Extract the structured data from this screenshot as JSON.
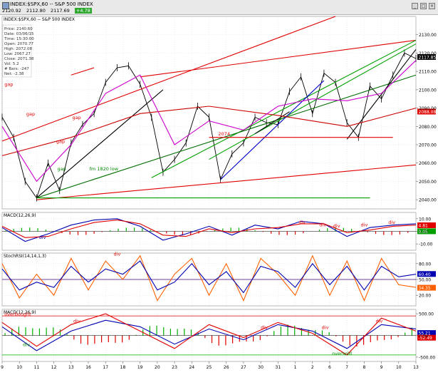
{
  "window": {
    "title": "INDEX:$SPX,60 -- S&P 500 INDEX",
    "quote": {
      "v1": "2120.92",
      "v2": "2112.80",
      "v3": "2117.69",
      "change": "+4.78"
    }
  },
  "info_box": [
    "Price: 2140.60",
    "Date: 03/06/15",
    "Time: 15:30:00",
    "Open: 2070.77",
    "High: 2072.08",
    "Low: 2067.27",
    "Close: 2071.38",
    "Vol: 5.2",
    "# Bars: -247",
    "Net: -2.38"
  ],
  "colors": {
    "price": "#000000",
    "trend_red": "#e00000",
    "trend_green": "#00a000",
    "trend_darkgreen": "#007000",
    "trend_blue": "#0000cc",
    "ma_red": "#cc0000",
    "ma_magenta": "#cc00cc",
    "macd_blue": "#0000b0",
    "macd_red": "#e00000",
    "stoch_orange": "#ff6000",
    "hist_green": "#00b000",
    "hist_red": "#e00000",
    "annotation_red": "#e00000",
    "annotation_green": "#008800"
  },
  "chart_data": [
    {
      "type": "line",
      "panel": "price",
      "title": "INDEX:$SPX,60 -- S&P 500 INDEX",
      "ylim": [
        2035,
        2140
      ],
      "yticks": [
        "2040.00",
        "2050.00",
        "2060.00",
        "2070.00",
        "2080.00",
        "2090.00",
        "2100.00",
        "2110.00",
        "2120.00",
        "2130.00"
      ],
      "xlim": [
        0,
        36
      ],
      "x_labels": [
        {
          "t": 0,
          "label": "9"
        },
        {
          "t": 1.5,
          "label": "10"
        },
        {
          "t": 3,
          "label": "11"
        },
        {
          "t": 4.5,
          "label": "12"
        },
        {
          "t": 6,
          "label": "13"
        },
        {
          "t": 7.5,
          "label": "16"
        },
        {
          "t": 9,
          "label": "17"
        },
        {
          "t": 10.5,
          "label": "18"
        },
        {
          "t": 12,
          "label": "19"
        },
        {
          "t": 13.5,
          "label": "20"
        },
        {
          "t": 15,
          "label": "23"
        },
        {
          "t": 16.5,
          "label": "24"
        },
        {
          "t": 18,
          "label": "25"
        },
        {
          "t": 19.5,
          "label": "26"
        },
        {
          "t": 21,
          "label": "27"
        },
        {
          "t": 22.5,
          "label": "30"
        },
        {
          "t": 24,
          "label": "31"
        },
        {
          "t": 25.5,
          "label": "1"
        },
        {
          "t": 27,
          "label": "2"
        },
        {
          "t": 28.5,
          "label": "6"
        },
        {
          "t": 30,
          "label": "7"
        },
        {
          "t": 31.5,
          "label": "8"
        },
        {
          "t": 33,
          "label": "9"
        },
        {
          "t": 34.5,
          "label": "10"
        },
        {
          "t": 36,
          "label": "13"
        }
      ],
      "price": {
        "name": "SPX 60-min",
        "x": [
          0,
          1,
          2,
          3,
          4,
          5,
          6,
          7,
          8,
          9,
          10,
          11,
          12,
          13,
          14,
          15,
          16,
          17,
          18,
          19,
          20,
          21,
          22,
          23,
          24,
          25,
          26,
          27,
          28,
          29,
          30,
          31,
          32,
          33,
          34,
          35,
          36
        ],
        "y": [
          2085,
          2074,
          2050,
          2041,
          2060,
          2045,
          2071,
          2081,
          2087,
          2104,
          2112,
          2113,
          2103,
          2085,
          2055,
          2062,
          2071,
          2091,
          2085,
          2051,
          2065,
          2071,
          2085,
          2082,
          2081,
          2099,
          2107,
          2087,
          2109,
          2104,
          2082,
          2074,
          2102,
          2095,
          2108,
          2120,
          2117
        ]
      },
      "series": [
        {
          "name": "",
          "color": "#cc0000",
          "x": [
            0,
            6,
            12,
            18,
            24,
            30,
            36
          ],
          "y": [
            2064,
            2074,
            2087,
            2091,
            2086,
            2080,
            2090
          ]
        },
        {
          "name": "",
          "color": "#cc00cc",
          "x": [
            0,
            3,
            6,
            9,
            12,
            15,
            18,
            21,
            24,
            27,
            30,
            33,
            36
          ],
          "y": [
            2080,
            2050,
            2070,
            2098,
            2108,
            2070,
            2083,
            2078,
            2091,
            2095,
            2094,
            2098,
            2116
          ]
        }
      ],
      "trendlines": [
        {
          "x": [
            0,
            29
          ],
          "y": [
            2072,
            2140
          ],
          "color": "#e00000"
        },
        {
          "x": [
            12,
            36
          ],
          "y": [
            2107,
            2127
          ],
          "color": "#e00000"
        },
        {
          "x": [
            3,
            36
          ],
          "y": [
            2040,
            2059
          ],
          "color": "#e00000"
        },
        {
          "x": [
            13,
            36
          ],
          "y": [
            2052,
            2127
          ],
          "color": "#00a000"
        },
        {
          "x": [
            18,
            36
          ],
          "y": [
            2062,
            2125
          ],
          "color": "#00a000"
        },
        {
          "x": [
            3,
            36
          ],
          "y": [
            2041,
            2108
          ],
          "color": "#007000"
        },
        {
          "x": [
            19,
            28
          ],
          "y": [
            2051,
            2105
          ],
          "color": "#0000cc"
        },
        {
          "x": [
            22,
            25
          ],
          "y": [
            2076,
            2088
          ],
          "color": "#000000"
        },
        {
          "x": [
            3,
            14
          ],
          "y": [
            2041,
            2100
          ],
          "color": "#000000"
        },
        {
          "x": [
            30,
            36
          ],
          "y": [
            2073,
            2122
          ],
          "color": "#000000"
        },
        {
          "x": [
            3,
            32
          ],
          "y": [
            2041,
            2041
          ],
          "color": "#00a000"
        },
        {
          "x": [
            18,
            34
          ],
          "y": [
            2074,
            2074
          ],
          "color": "#e00000"
        },
        {
          "x": [
            6,
            8
          ],
          "y": [
            2108,
            2112
          ],
          "color": "#e00000"
        }
      ],
      "annotations": [
        {
          "text": "gap",
          "x": 0.2,
          "y": 2102,
          "color": "#e00000"
        },
        {
          "text": "gap",
          "x": 2.1,
          "y": 2086,
          "color": "#e00000"
        },
        {
          "text": "gap",
          "x": 4.7,
          "y": 2071,
          "color": "#e00000"
        },
        {
          "text": "gap",
          "x": 6.1,
          "y": 2084,
          "color": "#e00000"
        },
        {
          "text": "gap",
          "x": 4.8,
          "y": 2056,
          "color": "#008800"
        },
        {
          "text": "2074",
          "x": 18.8,
          "y": 2075,
          "color": "#e00000"
        },
        {
          "text": "fm 1820 low",
          "x": 7.6,
          "y": 2056,
          "color": "#008800"
        }
      ],
      "price_labels": [
        {
          "text": "2117.85",
          "value": 2117.85,
          "bg": "#000000"
        },
        {
          "text": "2088.08",
          "value": 2088.08,
          "bg": "#e00000"
        }
      ]
    },
    {
      "type": "line",
      "panel": "macd",
      "title": "MACD(12,26,9)",
      "ylim": [
        -15,
        15
      ],
      "yticks": [
        "10.00",
        "0.00",
        "-10.00"
      ],
      "series": [
        {
          "name": "MACD",
          "color": "#0000b0",
          "x": [
            0,
            2,
            4,
            6,
            8,
            10,
            12,
            14,
            16,
            18,
            20,
            22,
            24,
            26,
            28,
            30,
            32,
            34,
            36
          ],
          "y": [
            3,
            -8,
            -2,
            5,
            9,
            10,
            4,
            -7,
            -2,
            4,
            -3,
            5,
            2,
            8,
            6,
            -4,
            3,
            5,
            6
          ]
        },
        {
          "name": "Signal",
          "color": "#e00000",
          "x": [
            0,
            2,
            4,
            6,
            8,
            10,
            12,
            14,
            16,
            18,
            20,
            22,
            24,
            26,
            28,
            30,
            32,
            34,
            36
          ],
          "y": [
            4,
            -5,
            -4,
            2,
            7,
            9,
            6,
            -3,
            -4,
            2,
            -1,
            2,
            3,
            6,
            6,
            -1,
            1,
            4,
            5
          ]
        }
      ],
      "annotations": [
        {
          "text": "div",
          "x": 3.2,
          "y": -6,
          "color": "#0000b0"
        },
        {
          "text": "div",
          "x": 25.8,
          "y": 6,
          "color": "#e00000"
        },
        {
          "text": "div",
          "x": 27.6,
          "y": 4,
          "color": "#e00000"
        },
        {
          "text": "div",
          "x": 28.8,
          "y": 3,
          "color": "#e00000"
        },
        {
          "text": "div",
          "x": 31.2,
          "y": 4,
          "color": "#e00000"
        },
        {
          "text": "div",
          "x": 33.6,
          "y": 6,
          "color": "#e00000"
        }
      ],
      "price_labels": [
        {
          "text": "4.81",
          "value": 4.81,
          "bg": "#e00000"
        },
        {
          "text": "0.05",
          "value": 0.05,
          "bg": "#00a000"
        }
      ]
    },
    {
      "type": "line",
      "panel": "stochrsi",
      "title": "StochRSI(14,14,1,3)",
      "ylim": [
        0,
        100
      ],
      "yticks": [
        "80.00",
        "50.00",
        "20.00"
      ],
      "series": [
        {
          "name": "%K",
          "color": "#ff6000",
          "x": [
            0,
            1.5,
            3,
            4.5,
            6,
            7.5,
            9,
            10.5,
            12,
            13.5,
            15,
            16.5,
            18,
            19.5,
            21,
            22.5,
            24,
            25.5,
            27,
            28.5,
            30,
            31.5,
            33,
            34.5,
            36
          ],
          "y": [
            80,
            15,
            60,
            20,
            90,
            30,
            85,
            50,
            95,
            10,
            60,
            90,
            20,
            80,
            10,
            90,
            60,
            20,
            95,
            20,
            85,
            10,
            90,
            40,
            35
          ]
        },
        {
          "name": "%D",
          "color": "#0000b0",
          "x": [
            0,
            1.5,
            3,
            4.5,
            6,
            7.5,
            9,
            10.5,
            12,
            13.5,
            15,
            16.5,
            18,
            19.5,
            21,
            22.5,
            24,
            25.5,
            27,
            28.5,
            30,
            31.5,
            33,
            34.5,
            36
          ],
          "y": [
            70,
            30,
            45,
            35,
            75,
            45,
            70,
            60,
            85,
            30,
            45,
            80,
            40,
            65,
            25,
            75,
            65,
            35,
            80,
            40,
            75,
            30,
            75,
            55,
            60
          ]
        }
      ],
      "annotations": [
        {
          "text": "div",
          "x": 9.7,
          "y": 95,
          "color": "#e00000"
        }
      ],
      "price_labels": [
        {
          "text": "60.40",
          "value": 60.4,
          "bg": "#0000b0"
        },
        {
          "text": "34.35",
          "value": 34.35,
          "bg": "#ff6000"
        }
      ]
    },
    {
      "type": "bar",
      "panel": "macd_hist",
      "title": "MACD(12,26,9)",
      "ylim": [
        -600,
        600
      ],
      "yticks": [
        "500.00",
        "0.00",
        "-500.00"
      ],
      "series": [
        {
          "name": "Signal",
          "color": "#0000b0",
          "x": [
            0,
            3,
            6,
            9,
            12,
            15,
            18,
            21,
            24,
            27,
            30,
            33,
            36
          ],
          "y": [
            200,
            -350,
            100,
            350,
            200,
            -200,
            150,
            -100,
            250,
            100,
            -300,
            250,
            150
          ]
        },
        {
          "name": "MACD",
          "color": "#e00000",
          "x": [
            0,
            3,
            6,
            9,
            12,
            15,
            18,
            21,
            24,
            27,
            30,
            33,
            36
          ],
          "y": [
            300,
            -250,
            250,
            500,
            100,
            -300,
            250,
            -50,
            300,
            50,
            -450,
            400,
            100
          ]
        }
      ],
      "annotations": [
        {
          "text": "overbought",
          "x": 0.2,
          "y": 450,
          "color": "#e00000"
        },
        {
          "text": "div",
          "x": 6.2,
          "y": 300,
          "color": "#e00000"
        },
        {
          "text": "div",
          "x": 1.8,
          "y": -250,
          "color": "#008800"
        },
        {
          "text": "div",
          "x": 22.5,
          "y": 150,
          "color": "#e00000"
        },
        {
          "text": "div",
          "x": 27.8,
          "y": 150,
          "color": "#e00000"
        },
        {
          "text": "oversold",
          "x": 28.7,
          "y": -450,
          "color": "#008800"
        },
        {
          "text": "div",
          "x": 32.5,
          "y": 300,
          "color": "#e00000"
        }
      ],
      "price_labels": [
        {
          "text": "55.21",
          "value": 55.21,
          "bg": "#0000b0"
        },
        {
          "text": "-52.49",
          "value": -52.49,
          "bg": "#e00000"
        }
      ]
    }
  ]
}
